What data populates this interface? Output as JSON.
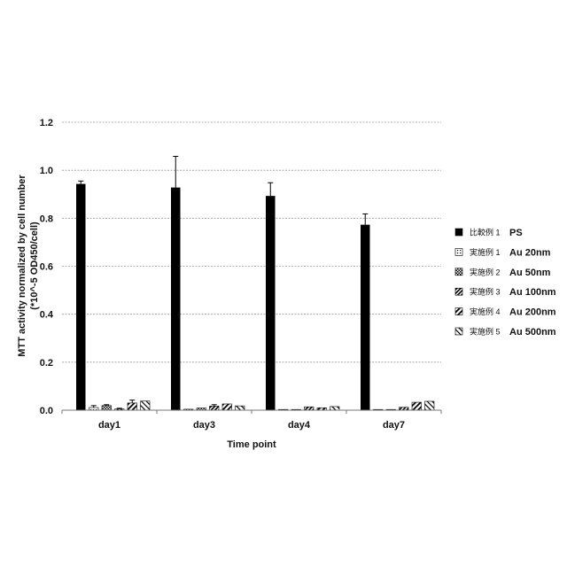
{
  "chart_data": {
    "type": "bar",
    "xlabel": "Time point",
    "ylabel_line1": "MTT activity normalized by cell number",
    "ylabel_line2": "(*10^-5 OD450/cell)",
    "ylim": [
      0,
      1.2
    ],
    "yticks": [
      "0.0",
      "0.2",
      "0.4",
      "0.6",
      "0.8",
      "1.0",
      "1.2"
    ],
    "grid": true,
    "legend_position": "right",
    "categories": [
      "day1",
      "day3",
      "day4",
      "day7"
    ],
    "series": [
      {
        "name": "PS",
        "label": "比較例 1",
        "pattern": "solid",
        "values": [
          0.943,
          0.928,
          0.893,
          0.773
        ],
        "errors": [
          0.012,
          0.13,
          0.055,
          0.045
        ]
      },
      {
        "name": "Au 20nm",
        "label": "実施例 1",
        "pattern": "dots",
        "values": [
          0.011,
          0.004,
          0.003,
          0.002
        ],
        "errors": [
          0.008,
          0.0,
          0.0,
          0.0
        ]
      },
      {
        "name": "Au 50nm",
        "label": "実施例 2",
        "pattern": "checker",
        "values": [
          0.019,
          0.009,
          0.0,
          0.0
        ],
        "errors": [
          0.004,
          0.0,
          0.0,
          0.0
        ]
      },
      {
        "name": "Au 100nm",
        "label": "実施例 3",
        "pattern": "diag-dense",
        "values": [
          0.005,
          0.017,
          0.014,
          0.012
        ],
        "errors": [
          0.003,
          0.006,
          0.0,
          0.0
        ]
      },
      {
        "name": "Au 200nm",
        "label": "実施例 4",
        "pattern": "diag-back",
        "values": [
          0.03,
          0.026,
          0.01,
          0.033
        ],
        "errors": [
          0.012,
          0.0,
          0.0,
          0.0
        ]
      },
      {
        "name": "Au 500nm",
        "label": "実施例 5",
        "pattern": "diag-fwd",
        "values": [
          0.038,
          0.018,
          0.015,
          0.037
        ],
        "errors": [
          0.0,
          0.0,
          0.0,
          0.0
        ]
      }
    ],
    "colors": {
      "bar": "#000000",
      "grid": "#999999",
      "axis": "#777777"
    }
  }
}
